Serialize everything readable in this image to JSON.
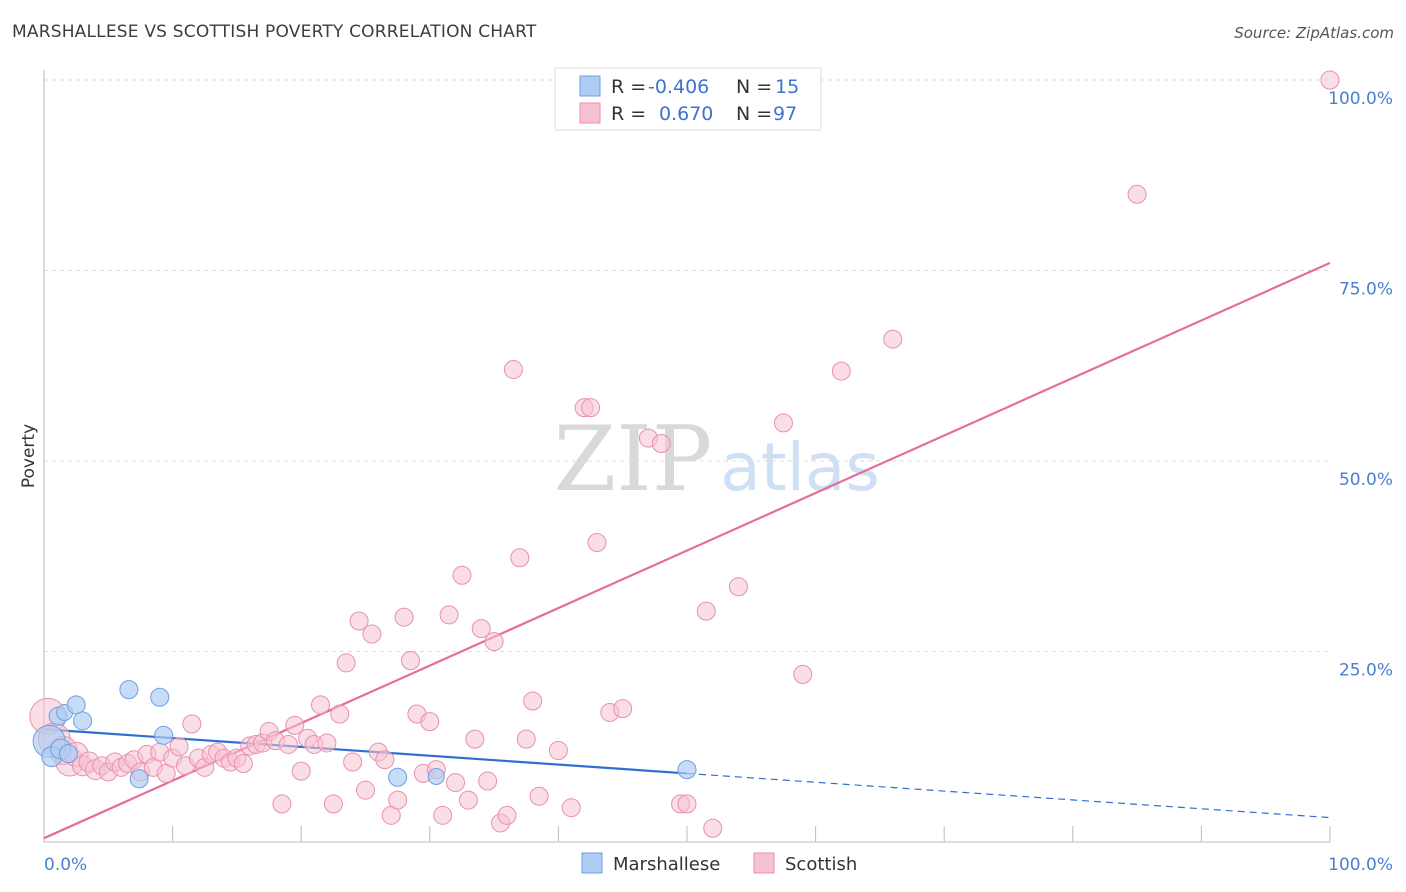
{
  "title": "MARSHALLESE VS SCOTTISH POVERTY CORRELATION CHART",
  "source": "Source: ZipAtlas.com",
  "watermark": {
    "zip": "ZIP",
    "atlas": "atlas"
  },
  "colors": {
    "marshallese_fill": "#aecdf3",
    "marshallese_stroke": "#6f9fe0",
    "marshallese_line": "#2f6fd0",
    "scottish_fill": "#f6c2d2",
    "scottish_stroke": "#ea8fae",
    "scottish_line": "#e56e98",
    "tick_label": "#4a7fd0"
  },
  "legend": {
    "rows": [
      {
        "series": "marshallese",
        "r_label": "R =",
        "r_value": "-0.406",
        "n_label": "N =",
        "n_value": "15"
      },
      {
        "series": "scottish",
        "r_label": "R =",
        "r_value": "0.670",
        "n_label": "N =",
        "n_value": "97"
      }
    ]
  },
  "chart_data": {
    "type": "scatter",
    "title": "MARSHALLESE VS SCOTTISH POVERTY CORRELATION CHART",
    "xlabel": "",
    "ylabel": "Poverty",
    "xlim": [
      0,
      100
    ],
    "ylim": [
      0,
      100
    ],
    "x_tick_labels": [
      "0.0%",
      "100.0%"
    ],
    "y_tick_labels": [
      "25.0%",
      "50.0%",
      "75.0%",
      "100.0%"
    ],
    "y_ticks": [
      25,
      50,
      75,
      100
    ],
    "legend_placement": "bottom-center",
    "series": [
      {
        "name": "Marshallese",
        "points": [
          [
            0.4,
            13.2,
            16
          ],
          [
            0.6,
            11.2,
            10
          ],
          [
            1.1,
            16.5,
            9
          ],
          [
            1.3,
            12.2,
            10
          ],
          [
            1.6,
            17.0,
            8
          ],
          [
            1.9,
            11.6,
            9
          ],
          [
            2.5,
            18.0,
            9
          ],
          [
            3.0,
            15.9,
            9
          ],
          [
            6.6,
            20.0,
            9
          ],
          [
            7.4,
            8.3,
            9
          ],
          [
            9.0,
            19.0,
            9
          ],
          [
            9.3,
            14.0,
            9
          ],
          [
            27.5,
            8.5,
            9
          ],
          [
            50.0,
            9.5,
            9
          ],
          [
            30.5,
            8.6,
            8
          ]
        ],
        "trendline": {
          "x0": 0,
          "y0": 14.8,
          "x1": 50,
          "y1": 9.0,
          "dashed_to_x": 100,
          "dashed_to_y": 3.2
        }
      },
      {
        "name": "Scottish",
        "points": [
          [
            0.3,
            16.5,
            18
          ],
          [
            0.8,
            13.5,
            16
          ],
          [
            1.5,
            12.0,
            14
          ],
          [
            2.0,
            10.5,
            14
          ],
          [
            2.5,
            11.5,
            12
          ],
          [
            3.0,
            10.0,
            10
          ],
          [
            3.5,
            10.5,
            10
          ],
          [
            4.0,
            9.5,
            10
          ],
          [
            4.5,
            10.0,
            9
          ],
          [
            5.0,
            9.2,
            9
          ],
          [
            5.5,
            10.5,
            9
          ],
          [
            6.0,
            9.8,
            9
          ],
          [
            6.5,
            10.3,
            9
          ],
          [
            7.0,
            10.8,
            9
          ],
          [
            7.5,
            9.2,
            9
          ],
          [
            8.0,
            11.5,
            9
          ],
          [
            8.5,
            9.8,
            9
          ],
          [
            9.0,
            11.8,
            9
          ],
          [
            9.5,
            9.0,
            9
          ],
          [
            10.0,
            11.0,
            9
          ],
          [
            10.5,
            12.5,
            9
          ],
          [
            11.0,
            10.0,
            9
          ],
          [
            11.5,
            15.5,
            9
          ],
          [
            12.0,
            11.0,
            9
          ],
          [
            12.5,
            9.8,
            9
          ],
          [
            13.0,
            11.5,
            9
          ],
          [
            13.5,
            11.8,
            9
          ],
          [
            14.0,
            11.0,
            9
          ],
          [
            14.5,
            10.5,
            9
          ],
          [
            15.0,
            11.0,
            9
          ],
          [
            15.5,
            10.3,
            9
          ],
          [
            16.0,
            12.6,
            9
          ],
          [
            16.5,
            12.8,
            9
          ],
          [
            17.0,
            13.0,
            9
          ],
          [
            17.5,
            14.5,
            9
          ],
          [
            18.0,
            13.3,
            9
          ],
          [
            18.5,
            5.0,
            9
          ],
          [
            19.0,
            12.8,
            9
          ],
          [
            19.5,
            15.3,
            9
          ],
          [
            20.0,
            9.3,
            9
          ],
          [
            20.5,
            13.6,
            9
          ],
          [
            21.0,
            12.8,
            9
          ],
          [
            21.5,
            18.0,
            9
          ],
          [
            22.0,
            13.0,
            9
          ],
          [
            22.5,
            5.0,
            9
          ],
          [
            23.0,
            16.8,
            9
          ],
          [
            23.5,
            23.5,
            9
          ],
          [
            24.0,
            10.5,
            9
          ],
          [
            24.5,
            29.0,
            9
          ],
          [
            25.0,
            6.8,
            9
          ],
          [
            25.5,
            27.3,
            9
          ],
          [
            26.0,
            11.8,
            9
          ],
          [
            26.5,
            10.8,
            9
          ],
          [
            27.0,
            3.5,
            9
          ],
          [
            27.5,
            5.5,
            9
          ],
          [
            28.0,
            29.5,
            9
          ],
          [
            28.5,
            23.8,
            9
          ],
          [
            29.0,
            16.8,
            9
          ],
          [
            29.5,
            9.0,
            9
          ],
          [
            30.0,
            15.8,
            9
          ],
          [
            30.5,
            9.5,
            9
          ],
          [
            31.0,
            3.5,
            9
          ],
          [
            31.5,
            29.8,
            9
          ],
          [
            32.0,
            7.8,
            9
          ],
          [
            32.5,
            35.0,
            9
          ],
          [
            33.0,
            5.5,
            9
          ],
          [
            33.5,
            13.5,
            9
          ],
          [
            34.0,
            28.0,
            9
          ],
          [
            34.5,
            8.0,
            9
          ],
          [
            35.0,
            26.3,
            9
          ],
          [
            35.5,
            2.5,
            9
          ],
          [
            36.0,
            3.5,
            9
          ],
          [
            36.5,
            62.0,
            9
          ],
          [
            37.0,
            37.3,
            9
          ],
          [
            37.5,
            13.5,
            9
          ],
          [
            38.0,
            18.5,
            9
          ],
          [
            38.5,
            6.0,
            9
          ],
          [
            40.0,
            12.0,
            9
          ],
          [
            41.0,
            4.5,
            9
          ],
          [
            42.0,
            57.0,
            9
          ],
          [
            42.5,
            57.0,
            9
          ],
          [
            43.0,
            39.3,
            9
          ],
          [
            44.0,
            17.0,
            9
          ],
          [
            45.0,
            17.5,
            9
          ],
          [
            47.0,
            53.0,
            9
          ],
          [
            48.0,
            52.3,
            9
          ],
          [
            49.5,
            5.0,
            9
          ],
          [
            50.0,
            5.0,
            9
          ],
          [
            51.5,
            30.3,
            9
          ],
          [
            52.0,
            1.8,
            9
          ],
          [
            54.0,
            33.5,
            9
          ],
          [
            57.5,
            55.0,
            9
          ],
          [
            59.0,
            22.0,
            9
          ],
          [
            62.0,
            61.8,
            9
          ],
          [
            66.0,
            66.0,
            9
          ],
          [
            85.0,
            85.0,
            9
          ],
          [
            100.0,
            100.0,
            9
          ]
        ],
        "trendline": {
          "x0": 0,
          "y0": 0.5,
          "x1": 100,
          "y1": 76.0
        }
      }
    ]
  }
}
